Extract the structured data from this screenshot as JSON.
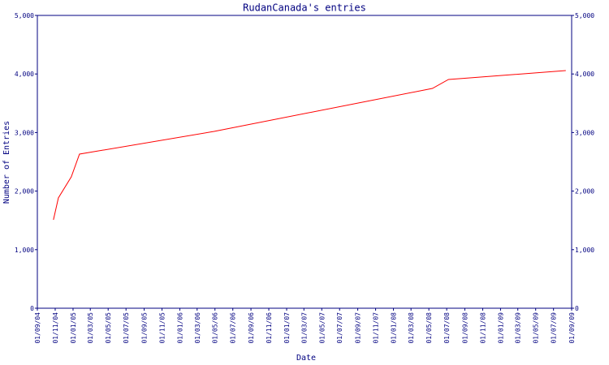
{
  "chart_data": {
    "type": "line",
    "title": "RudanCanada's entries",
    "x_label": "Date",
    "y_label": "Number of Entries",
    "x": [
      "26/10/04",
      "12/11/04",
      "26/12/04",
      "23/01/05",
      "28/04/06",
      "13/05/08",
      "07/07/08",
      "13/08/08",
      "12/08/09"
    ],
    "series": [
      {
        "color": "#ff0000",
        "values": [
          1510,
          1884,
          2244,
          2632,
          3020,
          3753,
          3906,
          3920,
          4058
        ]
      }
    ],
    "xlim": [
      "01/09/04",
      "01/09/09"
    ],
    "xticks": [
      "01/09/04",
      "01/11/04",
      "01/01/05",
      "01/03/05",
      "01/05/05",
      "01/07/05",
      "01/09/05",
      "01/11/05",
      "01/01/06",
      "01/03/06",
      "01/05/06",
      "01/07/06",
      "01/09/06",
      "01/11/06",
      "01/01/07",
      "01/03/07",
      "01/05/07",
      "01/07/07",
      "01/09/07",
      "01/11/07",
      "01/01/08",
      "01/03/08",
      "01/05/08",
      "01/07/08",
      "01/09/08",
      "01/11/08",
      "01/01/09",
      "01/03/09",
      "01/05/09",
      "01/07/09",
      "01/09/09"
    ],
    "ylim": [
      0,
      5000
    ],
    "yticks": [
      0,
      {
        "value": 1000,
        "label": "1,000"
      },
      {
        "value": 2000,
        "label": "2,000"
      },
      {
        "value": 3000,
        "label": "3,000"
      },
      {
        "value": 4000,
        "label": "4,000"
      },
      {
        "value": 5000,
        "label": "5,000"
      }
    ],
    "axis_color": "#000080"
  }
}
